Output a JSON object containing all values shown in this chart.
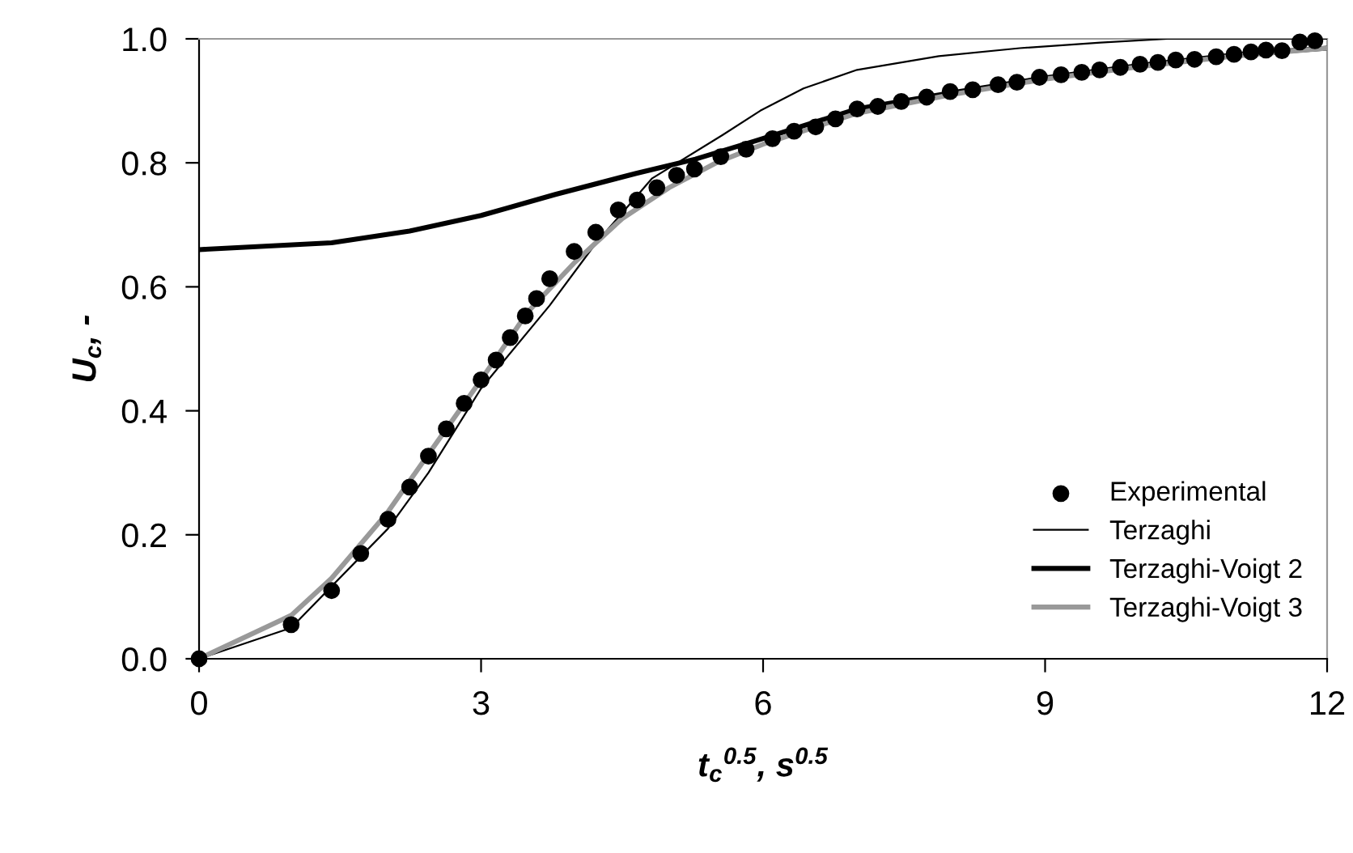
{
  "chart_data": {
    "type": "line",
    "xlabel": "t$_{c}$$^{0.5}$, s$^{0.5}$",
    "ylabel": "U$_{c}$, -",
    "xlim": [
      0,
      12
    ],
    "xticks": [
      0,
      3,
      6,
      9,
      12
    ],
    "ylim": [
      0,
      1.0
    ],
    "yticks": [
      {
        "value": 0,
        "label": "0.0"
      },
      {
        "value": 0.2,
        "label": "0.2"
      },
      {
        "value": 0.4,
        "label": "0.4"
      },
      {
        "value": 0.6,
        "label": "0.6"
      },
      {
        "value": 0.8,
        "label": "0.8"
      },
      {
        "value": 1.0,
        "label": "1.0"
      }
    ],
    "grid": false,
    "legend": "bottom right",
    "series": [
      {
        "name": "Experimental",
        "type": "scatter",
        "color": "#000000",
        "marker": "circle",
        "x": [
          0,
          0.98,
          1.41,
          1.72,
          2.01,
          2.24,
          2.44,
          2.63,
          2.82,
          3.0,
          3.16,
          3.31,
          3.47,
          3.59,
          3.73,
          3.99,
          4.22,
          4.46,
          4.66,
          4.87,
          5.08,
          5.27,
          5.55,
          5.82,
          6.1,
          6.33,
          6.56,
          6.77,
          7.0,
          7.22,
          7.47,
          7.74,
          7.99,
          8.23,
          8.5,
          8.7,
          8.94,
          9.17,
          9.39,
          9.58,
          9.8,
          10.01,
          10.2,
          10.39,
          10.59,
          10.82,
          11.01,
          11.19,
          11.35,
          11.52,
          11.71,
          11.87
        ],
        "values": [
          0,
          0.055,
          0.11,
          0.17,
          0.225,
          0.277,
          0.327,
          0.371,
          0.412,
          0.45,
          0.482,
          0.518,
          0.553,
          0.581,
          0.613,
          0.657,
          0.688,
          0.724,
          0.74,
          0.76,
          0.78,
          0.79,
          0.81,
          0.822,
          0.839,
          0.851,
          0.858,
          0.871,
          0.887,
          0.891,
          0.899,
          0.906,
          0.915,
          0.918,
          0.926,
          0.93,
          0.938,
          0.942,
          0.946,
          0.95,
          0.954,
          0.959,
          0.962,
          0.966,
          0.967,
          0.971,
          0.975,
          0.979,
          0.982,
          0.981,
          0.995,
          0.997
        ]
      },
      {
        "name": "Terzaghi",
        "color": "#000000",
        "marker": "none",
        "line_style": "solid",
        "x": [
          0,
          0.98,
          2.01,
          2.44,
          3.0,
          3.73,
          4.22,
          4.82,
          5.57,
          5.97,
          6.43,
          7.0,
          7.87,
          8.73,
          9.59,
          10.3,
          12
        ],
        "values": [
          0,
          0.05,
          0.21,
          0.3,
          0.436,
          0.57,
          0.67,
          0.775,
          0.845,
          0.884,
          0.92,
          0.95,
          0.972,
          0.985,
          0.994,
          1.0,
          1.0
        ]
      },
      {
        "name": "Terzaghi-Voigt 2",
        "color": "#000000",
        "marker": "none",
        "line_style": "solid",
        "x": [
          0,
          1.41,
          2.24,
          3.0,
          3.79,
          4.65,
          5.28,
          5.91,
          7,
          8,
          9,
          10,
          11,
          12
        ],
        "values": [
          0.66,
          0.671,
          0.69,
          0.715,
          0.749,
          0.783,
          0.806,
          0.835,
          0.887,
          0.913,
          0.937,
          0.957,
          0.974,
          0.985
        ]
      },
      {
        "name": "Terzaghi-Voigt 3",
        "color": "#999999",
        "marker": "none",
        "line_style": "solid",
        "x": [
          0,
          0.98,
          1.41,
          2,
          2.44,
          3,
          3.5,
          4,
          4.5,
          5,
          5.5,
          6,
          7,
          8,
          9,
          10,
          11,
          12
        ],
        "values": [
          0,
          0.07,
          0.13,
          0.235,
          0.33,
          0.45,
          0.56,
          0.64,
          0.71,
          0.76,
          0.8,
          0.83,
          0.88,
          0.91,
          0.935,
          0.955,
          0.972,
          0.985
        ]
      }
    ]
  }
}
